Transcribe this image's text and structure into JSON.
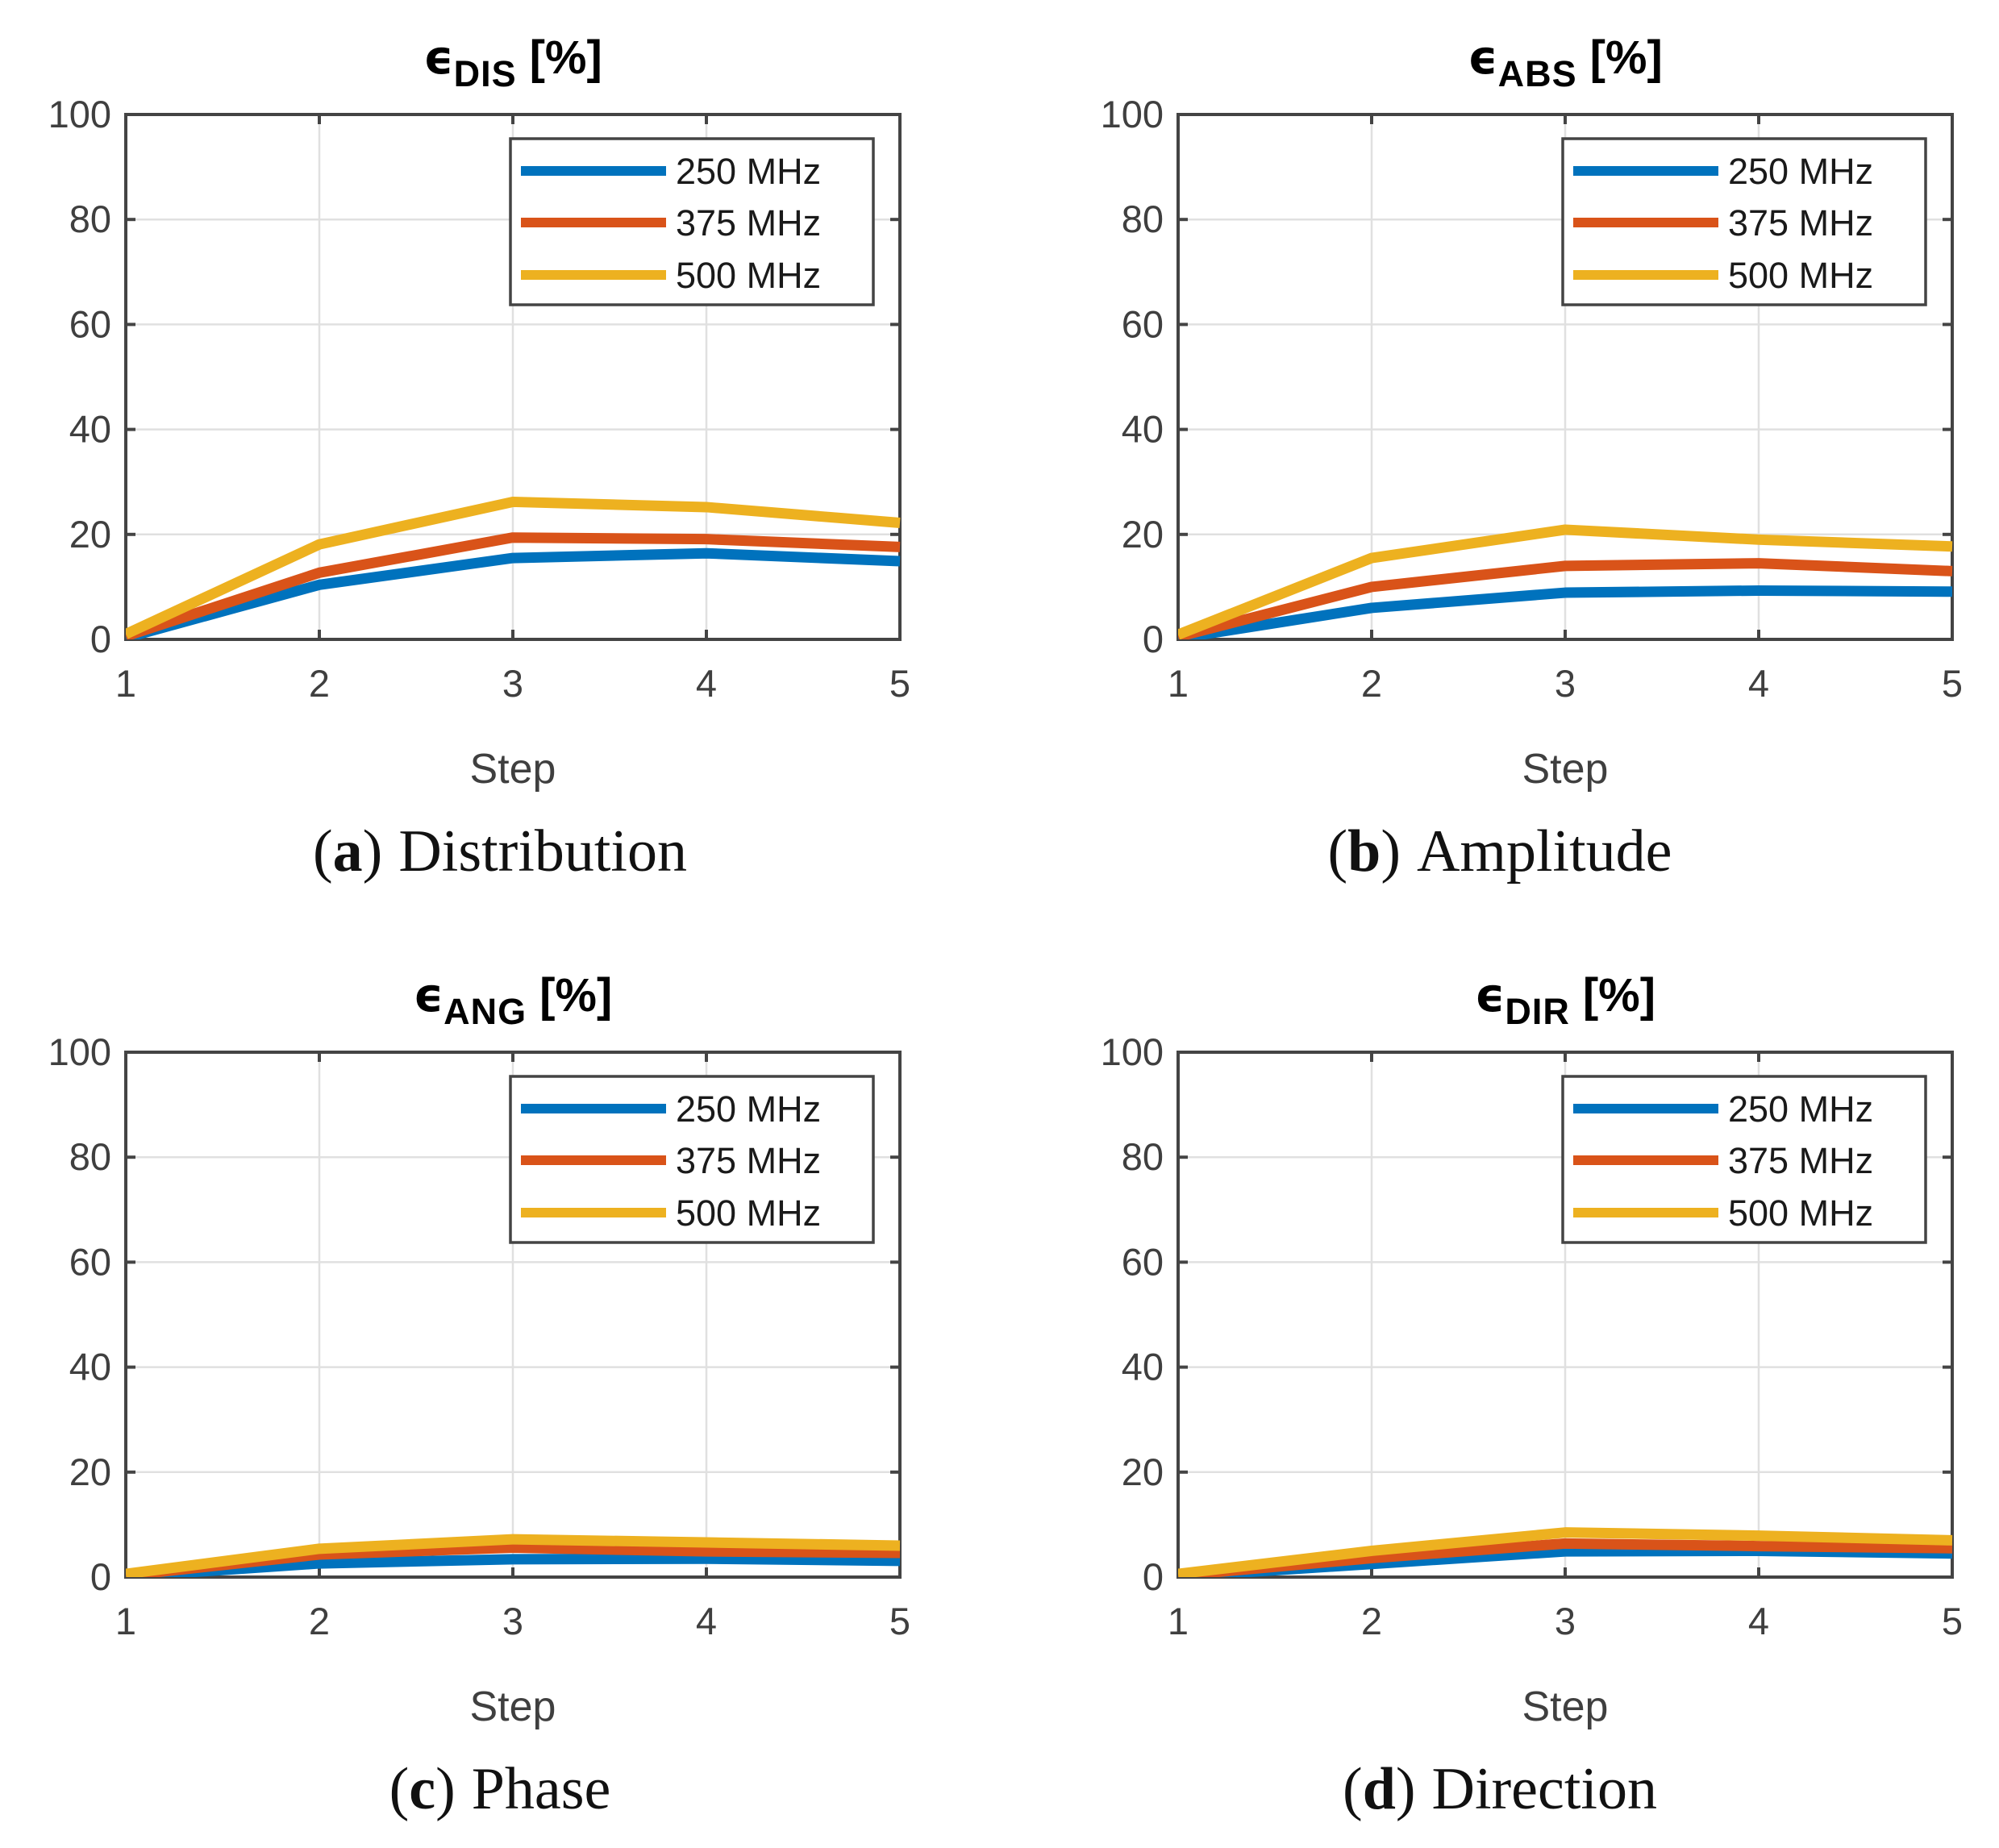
{
  "figure": {
    "background": "#ffffff",
    "axis_color": "#444444",
    "tick_label_color": "#3f3f3f",
    "grid_color": "#e0e0e0",
    "legend_text_color": "#1a1a1a",
    "series_colors": {
      "blue": "#0072BD",
      "orange": "#D95319",
      "yellow": "#EDB120"
    }
  },
  "chart_data": [
    {
      "id": "a",
      "type": "line",
      "title": {
        "symbol": "ϵ",
        "sub": "DIS",
        "unit": "[%]"
      },
      "caption": {
        "open": "(",
        "tag": "a",
        "close": ")",
        "text": "Distribution"
      },
      "xlabel": "Step",
      "x": [
        1,
        2,
        3,
        4,
        5
      ],
      "xticks": [
        "1",
        "2",
        "3",
        "4",
        "5"
      ],
      "yticks": [
        "0",
        "20",
        "40",
        "60",
        "80",
        "100"
      ],
      "xlim": [
        1,
        5
      ],
      "ylim": [
        0,
        100
      ],
      "grid": true,
      "legend_position": "upper-right",
      "series": [
        {
          "name": "250 MHz",
          "color": "#0072BD",
          "values": [
            0.3,
            10.4,
            15.5,
            16.4,
            14.9
          ]
        },
        {
          "name": "375 MHz",
          "color": "#D95319",
          "values": [
            0.6,
            12.7,
            19.4,
            19.1,
            17.6
          ]
        },
        {
          "name": "500 MHz",
          "color": "#EDB120",
          "values": [
            1.0,
            18.1,
            26.2,
            25.2,
            22.2
          ]
        }
      ]
    },
    {
      "id": "b",
      "type": "line",
      "title": {
        "symbol": "ϵ",
        "sub": "ABS",
        "unit": "[%]"
      },
      "caption": {
        "open": "(",
        "tag": "b",
        "close": ")",
        "text": "Amplitude"
      },
      "xlabel": "Step",
      "x": [
        1,
        2,
        3,
        4,
        5
      ],
      "xticks": [
        "1",
        "2",
        "3",
        "4",
        "5"
      ],
      "yticks": [
        "0",
        "20",
        "40",
        "60",
        "80",
        "100"
      ],
      "xlim": [
        1,
        5
      ],
      "ylim": [
        0,
        100
      ],
      "grid": true,
      "legend_position": "upper-right",
      "series": [
        {
          "name": "250 MHz",
          "color": "#0072BD",
          "values": [
            0.2,
            6.0,
            8.9,
            9.3,
            9.1
          ]
        },
        {
          "name": "375 MHz",
          "color": "#D95319",
          "values": [
            0.5,
            10.0,
            14.0,
            14.5,
            13.0
          ]
        },
        {
          "name": "500 MHz",
          "color": "#EDB120",
          "values": [
            0.9,
            15.5,
            20.9,
            19.0,
            17.7
          ]
        }
      ]
    },
    {
      "id": "c",
      "type": "line",
      "title": {
        "symbol": "ϵ",
        "sub": "ANG",
        "unit": "[%]"
      },
      "caption": {
        "open": "(",
        "tag": "c",
        "close": ")",
        "text": "Phase"
      },
      "xlabel": "Step",
      "x": [
        1,
        2,
        3,
        4,
        5
      ],
      "xticks": [
        "1",
        "2",
        "3",
        "4",
        "5"
      ],
      "yticks": [
        "0",
        "20",
        "40",
        "60",
        "80",
        "100"
      ],
      "xlim": [
        1,
        5
      ],
      "ylim": [
        0,
        100
      ],
      "grid": true,
      "legend_position": "upper-right",
      "series": [
        {
          "name": "250 MHz",
          "color": "#0072BD",
          "values": [
            0.1,
            2.6,
            3.4,
            3.5,
            3.1
          ]
        },
        {
          "name": "375 MHz",
          "color": "#D95319",
          "values": [
            0.3,
            4.3,
            5.6,
            4.9,
            4.6
          ]
        },
        {
          "name": "500 MHz",
          "color": "#EDB120",
          "values": [
            0.6,
            5.4,
            7.2,
            6.6,
            6.0
          ]
        }
      ]
    },
    {
      "id": "d",
      "type": "line",
      "title": {
        "symbol": "ϵ",
        "sub": "DIR",
        "unit": "[%]"
      },
      "caption": {
        "open": "(",
        "tag": "d",
        "close": ")",
        "text": "Direction"
      },
      "xlabel": "Step",
      "x": [
        1,
        2,
        3,
        4,
        5
      ],
      "xticks": [
        "1",
        "2",
        "3",
        "4",
        "5"
      ],
      "yticks": [
        "0",
        "20",
        "40",
        "60",
        "80",
        "100"
      ],
      "xlim": [
        1,
        5
      ],
      "ylim": [
        0,
        100
      ],
      "grid": true,
      "legend_position": "upper-right",
      "series": [
        {
          "name": "250 MHz",
          "color": "#0072BD",
          "values": [
            0.1,
            2.5,
            4.9,
            5.0,
            4.5
          ]
        },
        {
          "name": "375 MHz",
          "color": "#D95319",
          "values": [
            0.3,
            3.6,
            6.4,
            5.9,
            5.5
          ]
        },
        {
          "name": "500 MHz",
          "color": "#EDB120",
          "values": [
            0.6,
            5.0,
            8.5,
            7.9,
            7.0
          ]
        }
      ]
    }
  ]
}
